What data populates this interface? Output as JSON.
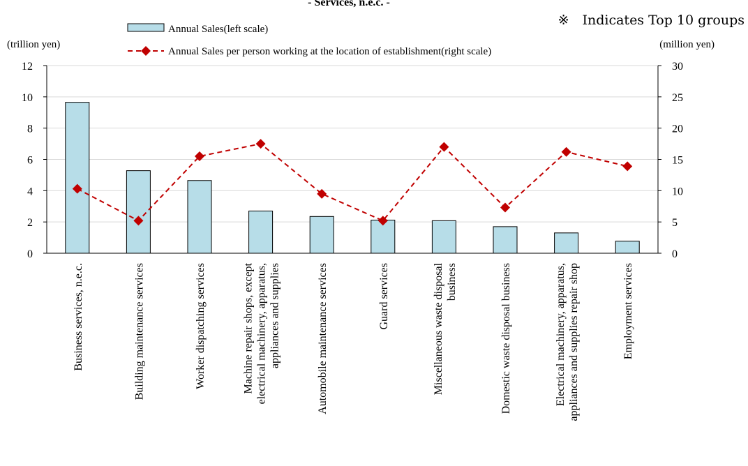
{
  "chart_data": {
    "type": "bar",
    "title": "- Services, n.e.c. -",
    "note": "※　Indicates Top 10 groups",
    "left_unit": "(trillion  yen)",
    "right_unit": "(million  yen)",
    "categories": [
      [
        "Business services, n.e.c."
      ],
      [
        "Building maintenance services"
      ],
      [
        "Worker dispatching services"
      ],
      [
        "Machine repair shops, except",
        "electrical machinery, apparatus,",
        "appliances and supplies"
      ],
      [
        "Automobile maintenance services"
      ],
      [
        "Guard services"
      ],
      [
        "Miscellaneous waste disposal",
        "business"
      ],
      [
        "Domestic waste disposal business"
      ],
      [
        "Electrical machinery, apparatus,",
        "appliances and supplies repair shop"
      ],
      [
        "Employment services"
      ]
    ],
    "series": [
      {
        "name": "Annual Sales(left scale)",
        "kind": "bar",
        "axis": "left",
        "color": "#b7dde8",
        "values": [
          9.65,
          5.28,
          4.65,
          2.7,
          2.35,
          2.12,
          2.08,
          1.7,
          1.3,
          0.77
        ]
      },
      {
        "name": "Annual Sales per person working at the location of establishment(right scale)",
        "kind": "line",
        "axis": "right",
        "style": "dashed",
        "marker": "diamond",
        "color": "#c00000",
        "values": [
          10.3,
          5.2,
          15.5,
          17.5,
          9.5,
          5.2,
          17.0,
          7.3,
          16.2,
          13.9
        ]
      }
    ],
    "y_left": {
      "min": 0,
      "max": 12,
      "ticks": [
        "0",
        "2",
        "4",
        "6",
        "8",
        "10",
        "12"
      ]
    },
    "y_right": {
      "min": 0,
      "max": 30,
      "ticks": [
        "0",
        "5",
        "10",
        "15",
        "20",
        "25",
        "30"
      ]
    },
    "legend_position": "top-center",
    "grid": true
  }
}
